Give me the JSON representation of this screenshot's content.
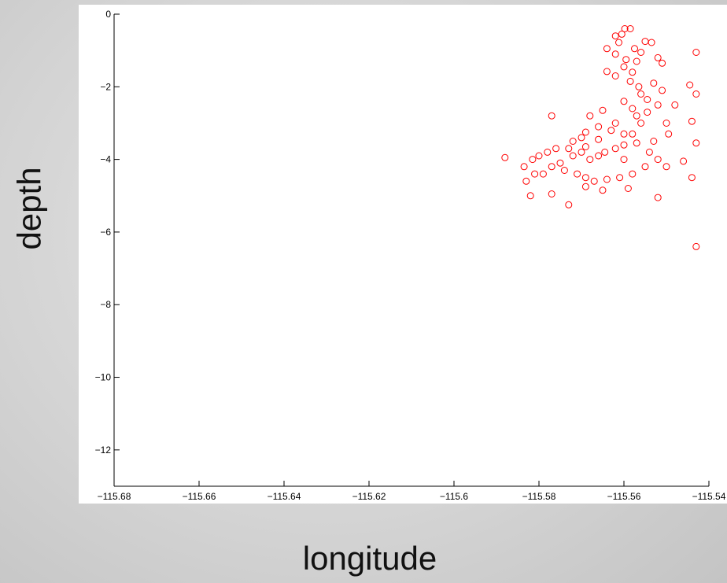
{
  "chart_data": {
    "type": "scatter",
    "title": "",
    "xlabel": "longitude",
    "ylabel": "depth",
    "xlim": [
      -115.68,
      -115.54
    ],
    "ylim": [
      -13,
      0
    ],
    "xticks": [
      "-115.68",
      "-115.66",
      "-115.64",
      "-115.62",
      "-115.6",
      "-115.58",
      "-115.56",
      "-115.54"
    ],
    "yticks": [
      "0",
      "-2",
      "-4",
      "-6",
      "-8",
      "-10",
      "-12"
    ],
    "grid": false,
    "marker": "open circle",
    "color": "#ff0000",
    "series": [
      {
        "points": [
          [
            -115.5598,
            -0.4
          ],
          [
            -115.5585,
            -0.4
          ],
          [
            -115.5605,
            -0.55
          ],
          [
            -115.562,
            -0.6
          ],
          [
            -115.5612,
            -0.78
          ],
          [
            -115.555,
            -0.75
          ],
          [
            -115.5535,
            -0.78
          ],
          [
            -115.5575,
            -0.95
          ],
          [
            -115.564,
            -0.95
          ],
          [
            -115.562,
            -1.1
          ],
          [
            -115.543,
            -1.05
          ],
          [
            -115.552,
            -1.2
          ],
          [
            -115.551,
            -1.35
          ],
          [
            -115.557,
            -1.3
          ],
          [
            -115.56,
            -1.45
          ],
          [
            -115.562,
            -1.7
          ],
          [
            -115.564,
            -1.58
          ],
          [
            -115.5585,
            -1.85
          ],
          [
            -115.553,
            -1.9
          ],
          [
            -115.551,
            -2.1
          ],
          [
            -115.5445,
            -1.95
          ],
          [
            -115.556,
            -2.2
          ],
          [
            -115.5545,
            -2.35
          ],
          [
            -115.543,
            -2.2
          ],
          [
            -115.552,
            -2.5
          ],
          [
            -115.548,
            -2.5
          ],
          [
            -115.56,
            -2.4
          ],
          [
            -115.558,
            -2.6
          ],
          [
            -115.565,
            -2.65
          ],
          [
            -115.568,
            -2.8
          ],
          [
            -115.577,
            -2.8
          ],
          [
            -115.544,
            -2.95
          ],
          [
            -115.55,
            -3.0
          ],
          [
            -115.556,
            -3.0
          ],
          [
            -115.562,
            -3.0
          ],
          [
            -115.566,
            -3.1
          ],
          [
            -115.569,
            -3.25
          ],
          [
            -115.57,
            -3.4
          ],
          [
            -115.572,
            -3.5
          ],
          [
            -115.543,
            -3.55
          ],
          [
            -115.5495,
            -3.3
          ],
          [
            -115.553,
            -3.5
          ],
          [
            -115.558,
            -3.3
          ],
          [
            -115.56,
            -3.6
          ],
          [
            -115.562,
            -3.7
          ],
          [
            -115.5645,
            -3.8
          ],
          [
            -115.566,
            -3.9
          ],
          [
            -115.568,
            -4.0
          ],
          [
            -115.57,
            -3.8
          ],
          [
            -115.573,
            -3.7
          ],
          [
            -115.576,
            -3.7
          ],
          [
            -115.578,
            -3.8
          ],
          [
            -115.58,
            -3.9
          ],
          [
            -115.5815,
            -4.0
          ],
          [
            -115.588,
            -3.95
          ],
          [
            -115.5835,
            -4.2
          ],
          [
            -115.581,
            -4.4
          ],
          [
            -115.577,
            -4.2
          ],
          [
            -115.574,
            -4.3
          ],
          [
            -115.571,
            -4.4
          ],
          [
            -115.569,
            -4.5
          ],
          [
            -115.567,
            -4.6
          ],
          [
            -115.564,
            -4.55
          ],
          [
            -115.561,
            -4.5
          ],
          [
            -115.558,
            -4.4
          ],
          [
            -115.555,
            -4.2
          ],
          [
            -115.552,
            -4.0
          ],
          [
            -115.55,
            -4.2
          ],
          [
            -115.546,
            -4.05
          ],
          [
            -115.544,
            -4.5
          ],
          [
            -115.552,
            -5.05
          ],
          [
            -115.559,
            -4.8
          ],
          [
            -115.565,
            -4.85
          ],
          [
            -115.569,
            -4.75
          ],
          [
            -115.573,
            -5.25
          ],
          [
            -115.577,
            -4.95
          ],
          [
            -115.582,
            -5.0
          ],
          [
            -115.583,
            -4.6
          ],
          [
            -115.579,
            -4.4
          ],
          [
            -115.543,
            -6.4
          ],
          [
            -115.554,
            -3.8
          ],
          [
            -115.557,
            -3.55
          ],
          [
            -115.56,
            -3.3
          ],
          [
            -115.563,
            -3.2
          ],
          [
            -115.566,
            -3.45
          ],
          [
            -115.569,
            -3.65
          ],
          [
            -115.572,
            -3.9
          ],
          [
            -115.575,
            -4.1
          ],
          [
            -115.56,
            -4.0
          ],
          [
            -115.557,
            -2.8
          ],
          [
            -115.5545,
            -2.7
          ],
          [
            -115.5565,
            -2.0
          ],
          [
            -115.558,
            -1.6
          ],
          [
            -115.5595,
            -1.25
          ],
          [
            -115.556,
            -1.05
          ]
        ]
      }
    ]
  }
}
